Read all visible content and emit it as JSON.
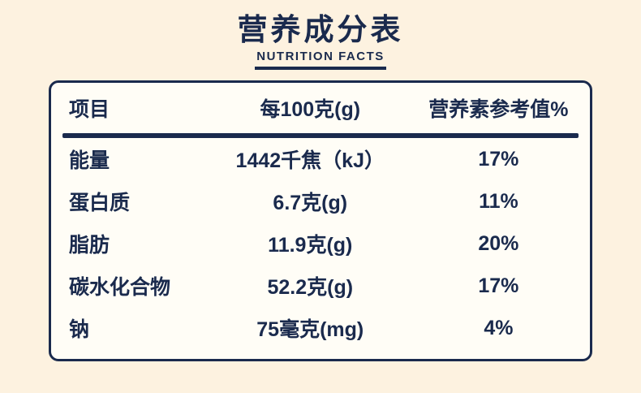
{
  "title": "营养成分表",
  "subtitle": "NUTRITION FACTS",
  "table": {
    "headers": [
      "项目",
      "每100克(g)",
      "营养素参考值%"
    ],
    "rows": [
      {
        "name": "能量",
        "amount": "1442千焦（kJ）",
        "nrv": "17%"
      },
      {
        "name": "蛋白质",
        "amount": "6.7克(g)",
        "nrv": "11%"
      },
      {
        "name": "脂肪",
        "amount": "11.9克(g)",
        "nrv": "20%"
      },
      {
        "name": "碳水化合物",
        "amount": "52.2克(g)",
        "nrv": "17%"
      },
      {
        "name": "钠",
        "amount": "75毫克(mg)",
        "nrv": "4%"
      }
    ]
  },
  "colors": {
    "ink": "#1a2a4d",
    "background": "#fdf2e0",
    "panel": "#fffdf6"
  }
}
